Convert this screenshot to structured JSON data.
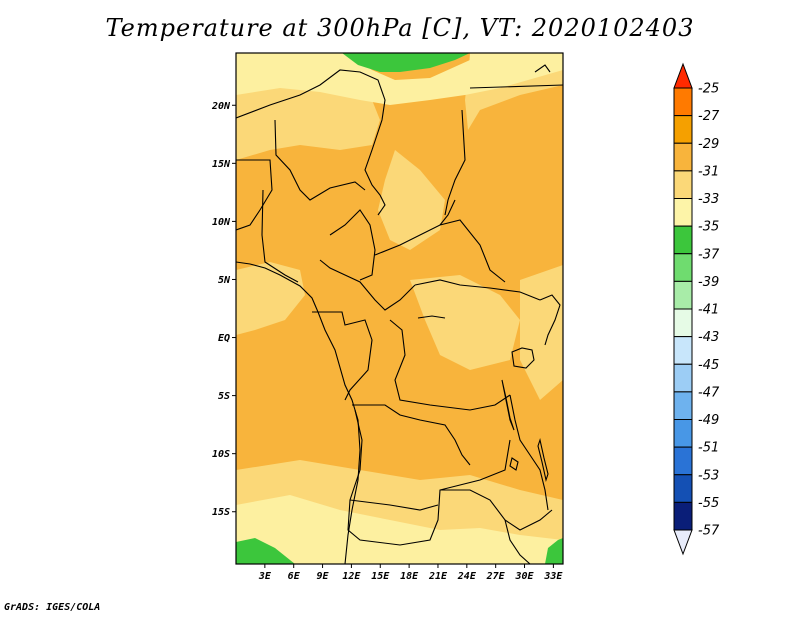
{
  "title": "Temperature at 300hPa [C], VT: 2020102403",
  "credit": "GrADS: IGES/COLA",
  "map": {
    "lat_range": [
      -19.5,
      24.5
    ],
    "lon_range": [
      0,
      34
    ],
    "y_ticks": [
      {
        "lat": 20,
        "label": "20N"
      },
      {
        "lat": 15,
        "label": "15N"
      },
      {
        "lat": 10,
        "label": "10N"
      },
      {
        "lat": 5,
        "label": "5N"
      },
      {
        "lat": 0,
        "label": "EQ"
      },
      {
        "lat": -5,
        "label": "5S"
      },
      {
        "lat": -10,
        "label": "10S"
      },
      {
        "lat": -15,
        "label": "15S"
      }
    ],
    "x_ticks": [
      {
        "lon": 3,
        "label": "3E"
      },
      {
        "lon": 6,
        "label": "6E"
      },
      {
        "lon": 9,
        "label": "9E"
      },
      {
        "lon": 12,
        "label": "12E"
      },
      {
        "lon": 15,
        "label": "15E"
      },
      {
        "lon": 18,
        "label": "18E"
      },
      {
        "lon": 21,
        "label": "21E"
      },
      {
        "lon": 24,
        "label": "24E"
      },
      {
        "lon": 27,
        "label": "27E"
      },
      {
        "lon": 30,
        "label": "30E"
      },
      {
        "lon": 33,
        "label": "33E"
      }
    ]
  },
  "colorbar": {
    "levels": [
      {
        "label": "-25",
        "color": "#ff3d00"
      },
      {
        "label": "-27",
        "color": "#ff7a00"
      },
      {
        "label": "-29",
        "color": "#f5a000"
      },
      {
        "label": "-31",
        "color": "#f8b43c"
      },
      {
        "label": "-33",
        "color": "#fbd878"
      },
      {
        "label": "-35",
        "color": "#fdf4a8"
      },
      {
        "label": "-37",
        "color": "#3cc63c"
      },
      {
        "label": "-39",
        "color": "#6fdc6f"
      },
      {
        "label": "-41",
        "color": "#a8eca8"
      },
      {
        "label": "-43",
        "color": "#e6fbe6"
      },
      {
        "label": "-45",
        "color": "#c8e6fb"
      },
      {
        "label": "-47",
        "color": "#9ccdf5"
      },
      {
        "label": "-49",
        "color": "#6eb2ee"
      },
      {
        "label": "-51",
        "color": "#4897e6"
      },
      {
        "label": "-53",
        "color": "#2a73d6"
      },
      {
        "label": "-55",
        "color": "#1450b4"
      },
      {
        "label": "-57",
        "color": "#0a1e78"
      }
    ],
    "top_arrow_color": "#ff2a00",
    "bottom_arrow_color": "#e8ecfb"
  },
  "field_colors": {
    "c29": "#f8b43c",
    "c31": "#fbd878",
    "c33": "#fdf0a0",
    "c35": "#3cc63c"
  }
}
